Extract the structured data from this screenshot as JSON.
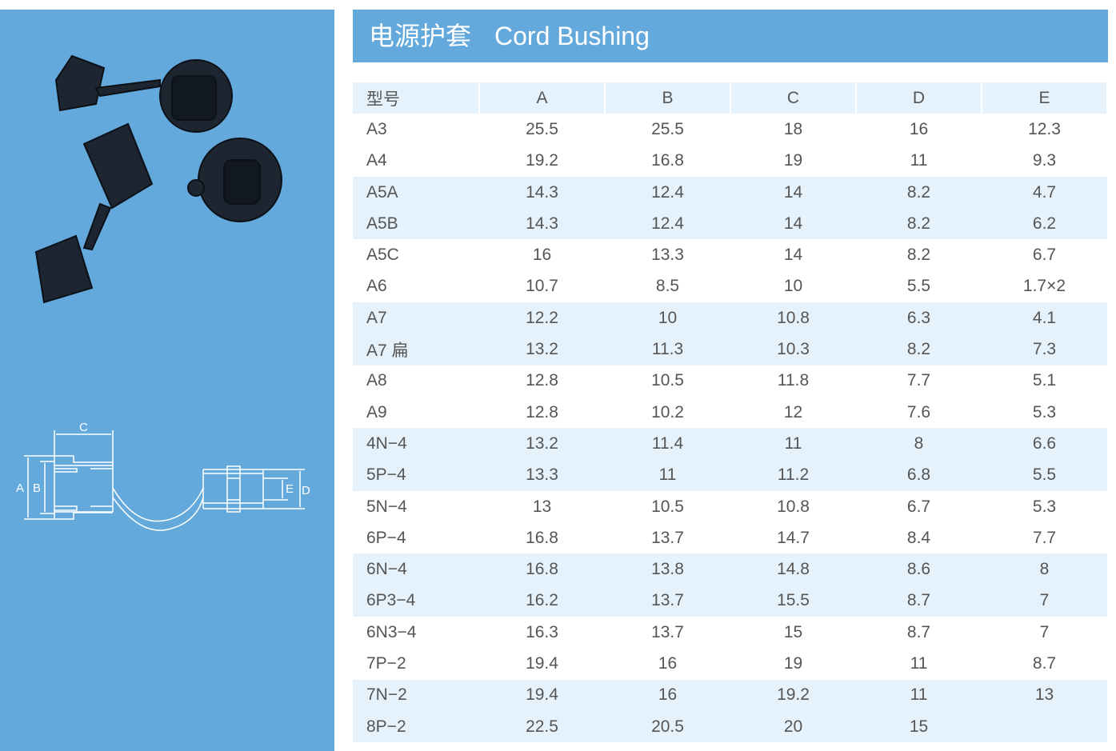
{
  "header": {
    "title_cn": "电源护套",
    "title_en": "Cord Bushing"
  },
  "diagram": {
    "labels": {
      "a": "A",
      "b": "B",
      "c": "C",
      "d": "D",
      "e": "E"
    }
  },
  "table": {
    "columns": [
      "型号",
      "A",
      "B",
      "C",
      "D",
      "E"
    ],
    "rows": [
      [
        "A3",
        "25.5",
        "25.5",
        "18",
        "16",
        "12.3"
      ],
      [
        "A4",
        "19.2",
        "16.8",
        "19",
        "11",
        "9.3"
      ],
      [
        "A5A",
        "14.3",
        "12.4",
        "14",
        "8.2",
        "4.7"
      ],
      [
        "A5B",
        "14.3",
        "12.4",
        "14",
        "8.2",
        "6.2"
      ],
      [
        "A5C",
        "16",
        "13.3",
        "14",
        "8.2",
        "6.7"
      ],
      [
        "A6",
        "10.7",
        "8.5",
        "10",
        "5.5",
        "1.7×2"
      ],
      [
        "A7",
        "12.2",
        "10",
        "10.8",
        "6.3",
        "4.1"
      ],
      [
        "A7 扁",
        "13.2",
        "11.3",
        "10.3",
        "8.2",
        "7.3"
      ],
      [
        "A8",
        "12.8",
        "10.5",
        "11.8",
        "7.7",
        "5.1"
      ],
      [
        "A9",
        "12.8",
        "10.2",
        "12",
        "7.6",
        "5.3"
      ],
      [
        "4N−4",
        "13.2",
        "11.4",
        "11",
        "8",
        "6.6"
      ],
      [
        "5P−4",
        "13.3",
        "11",
        "11.2",
        "6.8",
        "5.5"
      ],
      [
        "5N−4",
        "13",
        "10.5",
        "10.8",
        "6.7",
        "5.3"
      ],
      [
        "6P−4",
        "16.8",
        "13.7",
        "14.7",
        "8.4",
        "7.7"
      ],
      [
        "6N−4",
        "16.8",
        "13.8",
        "14.8",
        "8.6",
        "8"
      ],
      [
        "6P3−4",
        "16.2",
        "13.7",
        "15.5",
        "8.7",
        "7"
      ],
      [
        "6N3−4",
        "16.3",
        "13.7",
        "15",
        "8.7",
        "7"
      ],
      [
        "7P−2",
        "19.4",
        "16",
        "19",
        "11",
        "8.7"
      ],
      [
        "7N−2",
        "19.4",
        "16",
        "19.2",
        "11",
        "13"
      ],
      [
        "8P−2",
        "22.5",
        "20.5",
        "20",
        "15",
        ""
      ]
    ]
  }
}
